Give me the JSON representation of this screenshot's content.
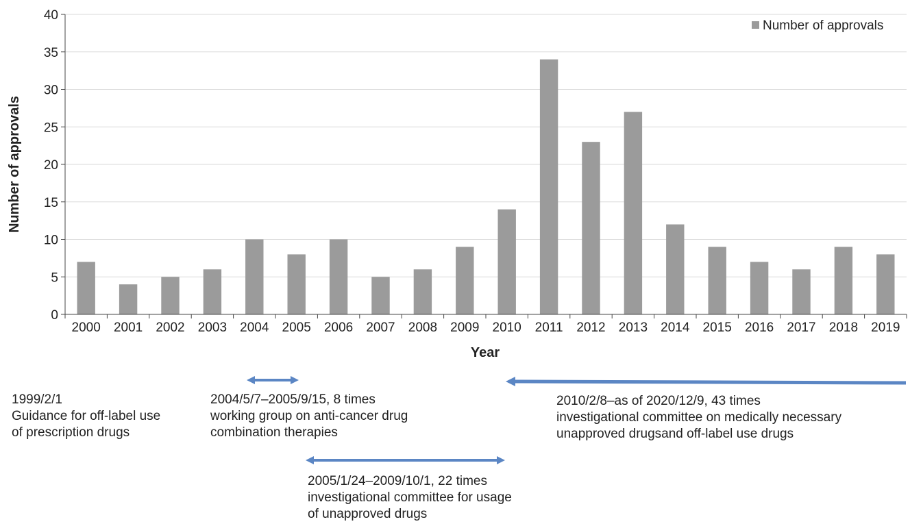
{
  "chart_data": {
    "type": "bar",
    "xlabel": "Year",
    "ylabel": "Number of approvals",
    "ylim": [
      0,
      40
    ],
    "yticks": [
      0,
      5,
      10,
      15,
      20,
      25,
      30,
      35,
      40
    ],
    "grid": true,
    "legend": "top-right",
    "categories": [
      "2000",
      "2001",
      "2002",
      "2003",
      "2004",
      "2005",
      "2006",
      "2007",
      "2008",
      "2009",
      "2010",
      "2011",
      "2012",
      "2013",
      "2014",
      "2015",
      "2016",
      "2017",
      "2018",
      "2019"
    ],
    "series": [
      {
        "name": "Number of approvals",
        "color": "#9b9b9b",
        "values": [
          7,
          4,
          5,
          6,
          10,
          8,
          10,
          5,
          6,
          9,
          14,
          34,
          23,
          27,
          12,
          9,
          7,
          6,
          9,
          8
        ]
      }
    ]
  },
  "timeline": {
    "arrow_color": "#5b86c4",
    "notes": [
      {
        "lines": [
          "1999/2/1",
          "Guidance for off-label use",
          "of prescription drugs"
        ]
      },
      {
        "lines": [
          "2004/5/7–2005/9/15, 8 times",
          "working group on anti-cancer drug",
          "combination therapies"
        ]
      },
      {
        "lines": [
          "2005/1/24–2009/10/1, 22 times",
          "investigational committee for usage",
          "of unapproved drugs"
        ]
      },
      {
        "lines": [
          "2010/2/8–as of 2020/12/9, 43 times",
          "investigational committee on medically necessary",
          "unapproved drugsand off-label use drugs"
        ]
      }
    ]
  }
}
